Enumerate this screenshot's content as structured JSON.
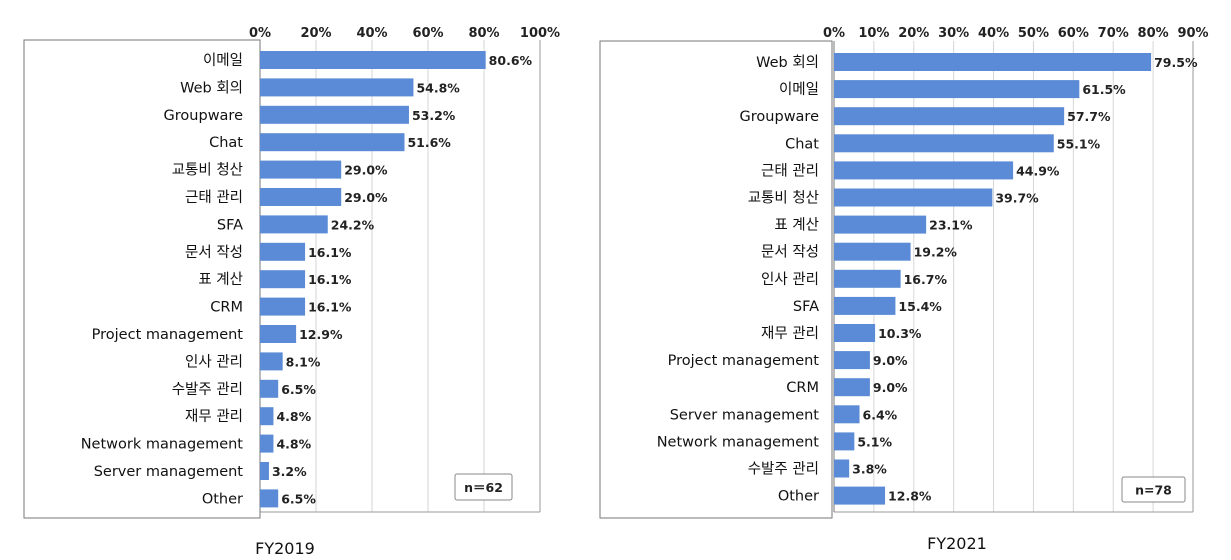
{
  "chart_data": [
    {
      "type": "bar",
      "orientation": "horizontal",
      "title": "FY2019",
      "note": "n＝62",
      "xlim": [
        0,
        100
      ],
      "xticks": [
        "0%",
        "20%",
        "40%",
        "60%",
        "80%",
        "100%"
      ],
      "grid": true,
      "bar_color": "#5b8bd6",
      "categories": [
        "이메일",
        "Web 회의",
        "Groupware",
        "Chat",
        "교통비 청산",
        "근태 관리",
        "SFA",
        "문서 작성",
        "표 계산",
        "CRM",
        "Project management",
        "인사 관리",
        "수발주 관리",
        "재무 관리",
        "Network management",
        "Server management",
        "Other"
      ],
      "values": [
        80.6,
        54.8,
        53.2,
        51.6,
        29.0,
        29.0,
        24.2,
        16.1,
        16.1,
        16.1,
        12.9,
        8.1,
        6.5,
        4.8,
        4.8,
        3.2,
        6.5
      ],
      "value_labels": [
        "80.6%",
        "54.8%",
        "53.2%",
        "51.6%",
        "29.0%",
        "29.0%",
        "24.2%",
        "16.1%",
        "16.1%",
        "16.1%",
        "12.9%",
        "8.1%",
        "6.5%",
        "4.8%",
        "4.8%",
        "3.2%",
        "6.5%"
      ]
    },
    {
      "type": "bar",
      "orientation": "horizontal",
      "title": "FY2021",
      "note": "n=78",
      "xlim": [
        0,
        90
      ],
      "xticks": [
        "0%",
        "10%",
        "20%",
        "30%",
        "40%",
        "50%",
        "60%",
        "70%",
        "80%",
        "90%"
      ],
      "grid": true,
      "bar_color": "#5b8bd6",
      "categories": [
        "Web 회의",
        "이메일",
        "Groupware",
        "Chat",
        "근태 관리",
        "교통비 청산",
        "표 계산",
        "문서 작성",
        "인사 관리",
        "SFA",
        "재무 관리",
        "Project management",
        "CRM",
        "Server management",
        "Network management",
        "수발주 관리",
        "Other"
      ],
      "values": [
        79.5,
        61.5,
        57.7,
        55.1,
        44.9,
        39.7,
        23.1,
        19.2,
        16.7,
        15.4,
        10.3,
        9.0,
        9.0,
        6.4,
        5.1,
        3.8,
        12.8
      ],
      "value_labels": [
        "79.5%",
        "61.5%",
        "57.7%",
        "55.1%",
        "44.9%",
        "39.7%",
        "23.1%",
        "19.2%",
        "16.7%",
        "15.4%",
        "10.3%",
        "9.0%",
        "9.0%",
        "6.4%",
        "5.1%",
        "3.8%",
        "12.8%"
      ]
    }
  ]
}
